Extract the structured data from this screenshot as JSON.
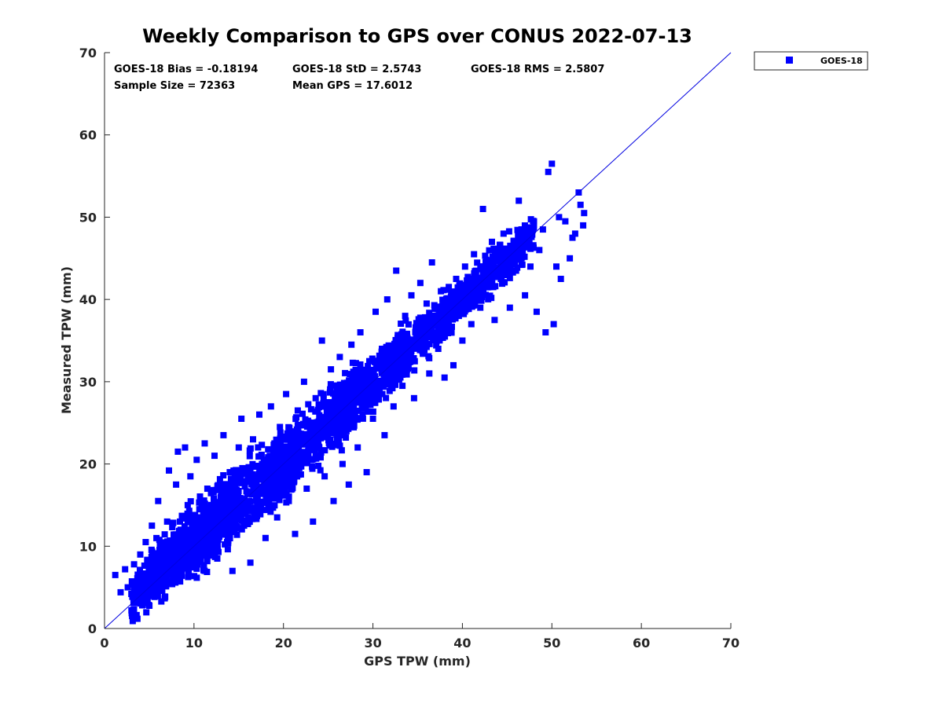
{
  "chart_data": {
    "type": "scatter",
    "title": "Weekly Comparison to GPS over CONUS 2022-07-13",
    "xlabel": "GPS TPW (mm)",
    "ylabel": "Measured TPW (mm)",
    "xlim": [
      0,
      70
    ],
    "ylim": [
      0,
      70
    ],
    "xticks": [
      "0",
      "10",
      "20",
      "30",
      "40",
      "50",
      "60",
      "70"
    ],
    "yticks": [
      "0",
      "10",
      "20",
      "30",
      "40",
      "50",
      "60",
      "70"
    ],
    "grid": false,
    "legend_position": "outside-top-right",
    "stats": {
      "bias": "GOES-18 Bias = -0.18194",
      "std": "GOES-18 StD = 2.5743",
      "rms": "GOES-18 RMS = 2.5807",
      "sample_size": "Sample Size = 72363",
      "mean_gps": "Mean GPS = 17.6012"
    },
    "reference_line": {
      "from": [
        0,
        0
      ],
      "to": [
        70,
        70
      ],
      "color": "#0000e0"
    },
    "series": [
      {
        "name": "GOES-18",
        "color": "#0000ff",
        "marker": "square",
        "points": [
          [
            1.2,
            6.5
          ],
          [
            1.8,
            4.4
          ],
          [
            2.3,
            7.2
          ],
          [
            2.6,
            5.0
          ],
          [
            3.0,
            4.2
          ],
          [
            3.3,
            7.8
          ],
          [
            3.7,
            5.5
          ],
          [
            4.0,
            9.0
          ],
          [
            4.3,
            6.2
          ],
          [
            4.6,
            10.5
          ],
          [
            5.0,
            7.0
          ],
          [
            5.3,
            12.5
          ],
          [
            5.6,
            8.0
          ],
          [
            6.0,
            15.5
          ],
          [
            6.3,
            9.5
          ],
          [
            6.5,
            5.2
          ],
          [
            7.0,
            13.0
          ],
          [
            7.2,
            19.2
          ],
          [
            7.5,
            10.0
          ],
          [
            8.0,
            17.5
          ],
          [
            8.2,
            21.5
          ],
          [
            8.5,
            12.0
          ],
          [
            8.8,
            8.5
          ],
          [
            9.0,
            22.0
          ],
          [
            9.3,
            15.0
          ],
          [
            9.6,
            18.5
          ],
          [
            10.0,
            11.0
          ],
          [
            10.3,
            20.5
          ],
          [
            10.6,
            14.5
          ],
          [
            11.0,
            9.5
          ],
          [
            11.2,
            22.5
          ],
          [
            11.5,
            17.0
          ],
          [
            12.0,
            13.0
          ],
          [
            12.3,
            21.0
          ],
          [
            12.6,
            8.5
          ],
          [
            13.0,
            16.0
          ],
          [
            13.3,
            23.5
          ],
          [
            13.7,
            10.5
          ],
          [
            14.0,
            19.0
          ],
          [
            14.3,
            7.0
          ],
          [
            14.6,
            14.0
          ],
          [
            15.0,
            22.0
          ],
          [
            15.3,
            25.5
          ],
          [
            15.6,
            12.5
          ],
          [
            16.0,
            18.0
          ],
          [
            16.3,
            8.0
          ],
          [
            16.6,
            23.0
          ],
          [
            17.0,
            15.5
          ],
          [
            17.3,
            26.0
          ],
          [
            17.6,
            20.0
          ],
          [
            18.0,
            11.0
          ],
          [
            18.3,
            17.5
          ],
          [
            18.6,
            27.0
          ],
          [
            19.0,
            22.5
          ],
          [
            19.3,
            13.5
          ],
          [
            19.6,
            24.5
          ],
          [
            20.0,
            19.5
          ],
          [
            20.3,
            28.5
          ],
          [
            20.6,
            15.5
          ],
          [
            21.0,
            23.0
          ],
          [
            21.3,
            11.5
          ],
          [
            21.6,
            26.5
          ],
          [
            22.0,
            20.5
          ],
          [
            22.3,
            30.0
          ],
          [
            22.6,
            17.0
          ],
          [
            23.0,
            25.0
          ],
          [
            23.3,
            13.0
          ],
          [
            23.6,
            28.0
          ],
          [
            24.0,
            22.0
          ],
          [
            24.3,
            35.0
          ],
          [
            24.6,
            18.5
          ],
          [
            25.0,
            27.5
          ],
          [
            25.3,
            31.5
          ],
          [
            25.6,
            15.5
          ],
          [
            26.0,
            24.5
          ],
          [
            26.3,
            33.0
          ],
          [
            26.6,
            20.0
          ],
          [
            27.0,
            29.0
          ],
          [
            27.3,
            17.5
          ],
          [
            27.6,
            34.5
          ],
          [
            28.0,
            26.0
          ],
          [
            28.3,
            22.0
          ],
          [
            28.6,
            36.0
          ],
          [
            29.0,
            30.5
          ],
          [
            29.3,
            19.0
          ],
          [
            29.6,
            32.5
          ],
          [
            30.0,
            25.5
          ],
          [
            30.3,
            38.5
          ],
          [
            30.6,
            28.5
          ],
          [
            31.0,
            34.0
          ],
          [
            31.3,
            23.5
          ],
          [
            31.6,
            40.0
          ],
          [
            32.0,
            31.0
          ],
          [
            32.3,
            27.0
          ],
          [
            32.6,
            43.5
          ],
          [
            33.0,
            35.5
          ],
          [
            33.3,
            29.5
          ],
          [
            33.6,
            38.0
          ],
          [
            34.0,
            32.5
          ],
          [
            34.3,
            40.5
          ],
          [
            34.6,
            28.0
          ],
          [
            35.0,
            36.5
          ],
          [
            35.3,
            42.0
          ],
          [
            35.6,
            33.5
          ],
          [
            36.0,
            39.5
          ],
          [
            36.3,
            31.0
          ],
          [
            36.6,
            44.5
          ],
          [
            37.0,
            37.5
          ],
          [
            37.3,
            34.0
          ],
          [
            37.6,
            41.0
          ],
          [
            38.0,
            30.5
          ],
          [
            38.3,
            39.0
          ],
          [
            38.6,
            36.0
          ],
          [
            39.0,
            32.0
          ],
          [
            39.3,
            42.5
          ],
          [
            39.6,
            38.0
          ],
          [
            40.0,
            35.0
          ],
          [
            40.3,
            44.0
          ],
          [
            40.6,
            40.5
          ],
          [
            41.0,
            37.0
          ],
          [
            41.3,
            45.5
          ],
          [
            41.6,
            42.0
          ],
          [
            42.0,
            39.0
          ],
          [
            42.3,
            51.0
          ],
          [
            42.6,
            44.5
          ],
          [
            43.0,
            41.5
          ],
          [
            43.3,
            47.0
          ],
          [
            43.6,
            37.5
          ],
          [
            44.0,
            45.5
          ],
          [
            44.3,
            42.5
          ],
          [
            44.6,
            48.0
          ],
          [
            45.0,
            44.0
          ],
          [
            45.3,
            39.0
          ],
          [
            45.6,
            46.5
          ],
          [
            46.0,
            43.5
          ],
          [
            46.3,
            52.0
          ],
          [
            46.6,
            45.0
          ],
          [
            47.0,
            40.5
          ],
          [
            47.3,
            47.5
          ],
          [
            47.6,
            44.0
          ],
          [
            48.0,
            49.5
          ],
          [
            48.3,
            38.5
          ],
          [
            48.6,
            46.0
          ],
          [
            49.0,
            48.5
          ],
          [
            49.3,
            36.0
          ],
          [
            49.6,
            55.5
          ],
          [
            50.0,
            56.5
          ],
          [
            50.2,
            37.0
          ],
          [
            50.5,
            44.0
          ],
          [
            50.8,
            50.0
          ],
          [
            51.0,
            42.5
          ],
          [
            51.5,
            49.5
          ],
          [
            52.0,
            45.0
          ],
          [
            52.3,
            47.5
          ],
          [
            52.6,
            48.0
          ],
          [
            53.0,
            53.0
          ],
          [
            53.2,
            51.5
          ],
          [
            53.5,
            49.0
          ],
          [
            53.6,
            50.5
          ]
        ],
        "dense_bands": [
          {
            "x": [
              3.0,
              10.0
            ],
            "y_center_offset": 0.5,
            "y_halfwidth": 2.5
          },
          {
            "x": [
              5.0,
              15.0
            ],
            "y_center_offset": 1.0,
            "y_halfwidth": 3.5
          },
          {
            "x": [
              10.0,
              22.0
            ],
            "y_center_offset": 0.0,
            "y_halfwidth": 4.0
          },
          {
            "x": [
              18.0,
              28.0
            ],
            "y_center_offset": 0.0,
            "y_halfwidth": 3.5
          },
          {
            "x": [
              25.0,
              34.0
            ],
            "y_center_offset": 0.0,
            "y_halfwidth": 3.0
          },
          {
            "x": [
              31.0,
              39.0
            ],
            "y_center_offset": 0.0,
            "y_halfwidth": 2.5
          },
          {
            "x": [
              38.0,
              48.0
            ],
            "y_center_offset": 0.0,
            "y_halfwidth": 2.2
          }
        ]
      }
    ]
  }
}
